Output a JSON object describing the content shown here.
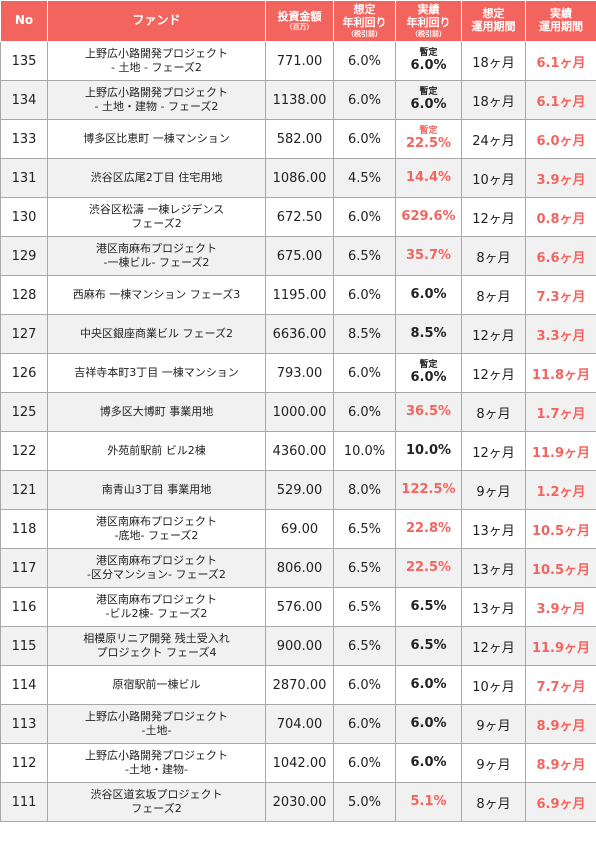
{
  "header": {
    "no": "No",
    "fund": "ファンド",
    "amount": "投資金額",
    "amount_unit": "（百万）",
    "expected_yield": "想定\n年利回り",
    "expected_yield_note": "（税引前）",
    "actual_yield": "実績\n年利回り",
    "actual_yield_note": "（税引前）",
    "expected_period": "想定\n運用期間",
    "actual_period": "実績\n運用期間"
  },
  "rows": [
    {
      "no": "135",
      "fund": "上野広小路開発プロジェクト\n- 土地 - フェーズ2",
      "amount": "771.00",
      "expected": "6.0%",
      "actual_prefix": "暫定",
      "actual": "6.0%",
      "actual_red": false,
      "exp_period": "18ヶ月",
      "act_period": "6.1ヶ月"
    },
    {
      "no": "134",
      "fund": "上野広小路開発プロジェクト\n- 土地・建物 - フェーズ2",
      "amount": "1138.00",
      "expected": "6.0%",
      "actual_prefix": "暫定",
      "actual": "6.0%",
      "actual_red": false,
      "exp_period": "18ヶ月",
      "act_period": "6.1ヶ月"
    },
    {
      "no": "133",
      "fund": "博多区比恵町 一棟マンション",
      "amount": "582.00",
      "expected": "6.0%",
      "actual_prefix": "暫定",
      "actual": "22.5%",
      "actual_red": true,
      "exp_period": "24ヶ月",
      "act_period": "6.0ヶ月"
    },
    {
      "no": "131",
      "fund": "渋谷区広尾2丁目 住宅用地",
      "amount": "1086.00",
      "expected": "4.5%",
      "actual_prefix": "",
      "actual": "14.4%",
      "actual_red": true,
      "exp_period": "10ヶ月",
      "act_period": "3.9ヶ月"
    },
    {
      "no": "130",
      "fund": "渋谷区松濤 一棟レジデンス\nフェーズ2",
      "amount": "672.50",
      "expected": "6.0%",
      "actual_prefix": "",
      "actual": "629.6%",
      "actual_red": true,
      "exp_period": "12ヶ月",
      "act_period": "0.8ヶ月"
    },
    {
      "no": "129",
      "fund": "港区南麻布プロジェクト\n-一棟ビル- フェーズ2",
      "amount": "675.00",
      "expected": "6.5%",
      "actual_prefix": "",
      "actual": "35.7%",
      "actual_red": true,
      "exp_period": "8ヶ月",
      "act_period": "6.6ヶ月"
    },
    {
      "no": "128",
      "fund": "西麻布 一棟マンション フェーズ3",
      "amount": "1195.00",
      "expected": "6.0%",
      "actual_prefix": "",
      "actual": "6.0%",
      "actual_red": false,
      "exp_period": "8ヶ月",
      "act_period": "7.3ヶ月"
    },
    {
      "no": "127",
      "fund": "中央区銀座商業ビル フェーズ2",
      "amount": "6636.00",
      "expected": "8.5%",
      "actual_prefix": "",
      "actual": "8.5%",
      "actual_red": false,
      "exp_period": "12ヶ月",
      "act_period": "3.3ヶ月"
    },
    {
      "no": "126",
      "fund": "吉祥寺本町3丁目 一棟マンション",
      "amount": "793.00",
      "expected": "6.0%",
      "actual_prefix": "暫定",
      "actual": "6.0%",
      "actual_red": false,
      "exp_period": "12ヶ月",
      "act_period": "11.8ヶ月"
    },
    {
      "no": "125",
      "fund": "博多区大博町 事業用地",
      "amount": "1000.00",
      "expected": "6.0%",
      "actual_prefix": "",
      "actual": "36.5%",
      "actual_red": true,
      "exp_period": "8ヶ月",
      "act_period": "1.7ヶ月"
    },
    {
      "no": "122",
      "fund": "外苑前駅前 ビル2棟",
      "amount": "4360.00",
      "expected": "10.0%",
      "actual_prefix": "",
      "actual": "10.0%",
      "actual_red": false,
      "exp_period": "12ヶ月",
      "act_period": "11.9ヶ月"
    },
    {
      "no": "121",
      "fund": "南青山3丁目 事業用地",
      "amount": "529.00",
      "expected": "8.0%",
      "actual_prefix": "",
      "actual": "122.5%",
      "actual_red": true,
      "exp_period": "9ヶ月",
      "act_period": "1.2ヶ月"
    },
    {
      "no": "118",
      "fund": "港区南麻布プロジェクト\n-底地- フェーズ2",
      "amount": "69.00",
      "expected": "6.5%",
      "actual_prefix": "",
      "actual": "22.8%",
      "actual_red": true,
      "exp_period": "13ヶ月",
      "act_period": "10.5ヶ月"
    },
    {
      "no": "117",
      "fund": "港区南麻布プロジェクト\n-区分マンション- フェーズ2",
      "amount": "806.00",
      "expected": "6.5%",
      "actual_prefix": "",
      "actual": "22.5%",
      "actual_red": true,
      "exp_period": "13ヶ月",
      "act_period": "10.5ヶ月"
    },
    {
      "no": "116",
      "fund": "港区南麻布プロジェクト\n-ビル2棟- フェーズ2",
      "amount": "576.00",
      "expected": "6.5%",
      "actual_prefix": "",
      "actual": "6.5%",
      "actual_red": false,
      "exp_period": "13ヶ月",
      "act_period": "3.9ヶ月"
    },
    {
      "no": "115",
      "fund": "相模原リニア開発 残土受入れ\nプロジェクト フェーズ4",
      "amount": "900.00",
      "expected": "6.5%",
      "actual_prefix": "",
      "actual": "6.5%",
      "actual_red": false,
      "exp_period": "12ヶ月",
      "act_period": "11.9ヶ月"
    },
    {
      "no": "114",
      "fund": "原宿駅前一棟ビル",
      "amount": "2870.00",
      "expected": "6.0%",
      "actual_prefix": "",
      "actual": "6.0%",
      "actual_red": false,
      "exp_period": "10ヶ月",
      "act_period": "7.7ヶ月"
    },
    {
      "no": "113",
      "fund": "上野広小路開発プロジェクト\n-土地-",
      "amount": "704.00",
      "expected": "6.0%",
      "actual_prefix": "",
      "actual": "6.0%",
      "actual_red": false,
      "exp_period": "9ヶ月",
      "act_period": "8.9ヶ月"
    },
    {
      "no": "112",
      "fund": "上野広小路開発プロジェクト\n-土地・建物-",
      "amount": "1042.00",
      "expected": "6.0%",
      "actual_prefix": "",
      "actual": "6.0%",
      "actual_red": false,
      "exp_period": "9ヶ月",
      "act_period": "8.9ヶ月"
    },
    {
      "no": "111",
      "fund": "渋谷区道玄坂プロジェクト\nフェーズ2",
      "amount": "2030.00",
      "expected": "5.0%",
      "actual_prefix": "",
      "actual": "5.1%",
      "actual_red": true,
      "exp_period": "8ヶ月",
      "act_period": "6.9ヶ月"
    }
  ]
}
